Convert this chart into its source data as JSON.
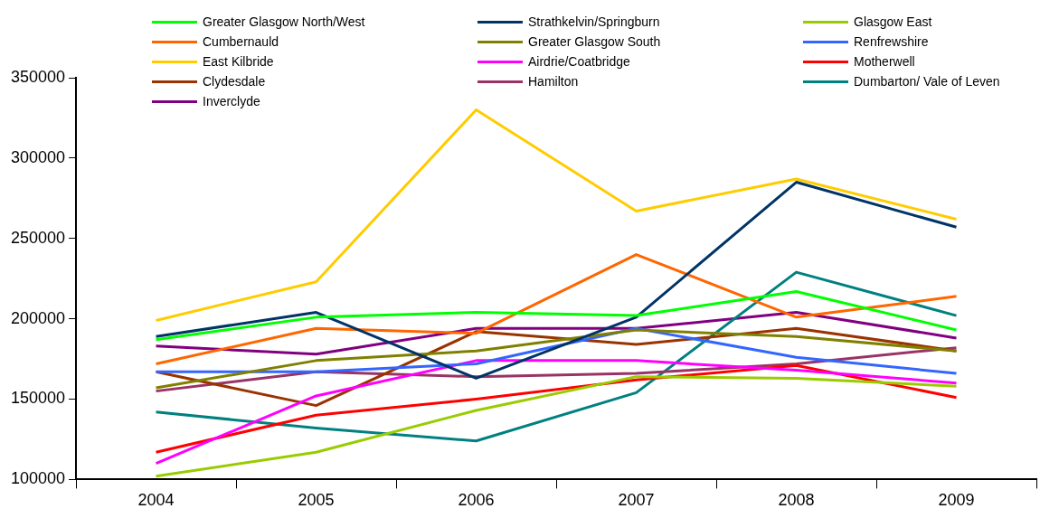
{
  "chart_data": {
    "type": "line",
    "categories": [
      "2004",
      "2005",
      "2006",
      "2007",
      "2008",
      "2009"
    ],
    "ylim": [
      100000,
      350000
    ],
    "yticks": [
      100000,
      150000,
      200000,
      250000,
      300000,
      350000
    ],
    "grid": false,
    "legend": "top",
    "marker": "none",
    "series": [
      {
        "name": "Greater Glasgow North/West",
        "color": "#00ff00",
        "values": [
          187000,
          201000,
          204000,
          202000,
          217000,
          193000
        ]
      },
      {
        "name": "Strathkelvin/Springburn",
        "color": "#003366",
        "values": [
          189000,
          204000,
          163000,
          201000,
          285000,
          257000
        ]
      },
      {
        "name": "Glasgow East",
        "color": "#99cc00",
        "values": [
          102000,
          117000,
          143000,
          164000,
          163000,
          158000
        ]
      },
      {
        "name": "Cumbernauld",
        "color": "#ff6600",
        "values": [
          172000,
          194000,
          191000,
          240000,
          201000,
          214000
        ]
      },
      {
        "name": "Greater Glasgow South",
        "color": "#808000",
        "values": [
          157000,
          174000,
          180000,
          193000,
          189000,
          180000
        ]
      },
      {
        "name": "Renfrewshire",
        "color": "#3366ff",
        "values": [
          167000,
          167000,
          172000,
          194000,
          176000,
          166000
        ]
      },
      {
        "name": "East Kilbride",
        "color": "#ffcc00",
        "values": [
          199000,
          223000,
          330000,
          267000,
          287000,
          262000
        ]
      },
      {
        "name": "Airdrie/Coatbridge",
        "color": "#ff00ff",
        "values": [
          110000,
          152000,
          174000,
          174000,
          168000,
          160000
        ]
      },
      {
        "name": "Motherwell",
        "color": "#ff0000",
        "values": [
          117000,
          140000,
          150000,
          162000,
          171000,
          151000
        ]
      },
      {
        "name": "Clydesdale",
        "color": "#993300",
        "values": [
          167000,
          146000,
          192000,
          184000,
          194000,
          180000
        ]
      },
      {
        "name": "Hamilton",
        "color": "#993366",
        "values": [
          155000,
          167000,
          164000,
          166000,
          172000,
          182000
        ]
      },
      {
        "name": "Dumbarton/ Vale of Leven",
        "color": "#008080",
        "values": [
          142000,
          132000,
          124000,
          154000,
          229000,
          202000
        ]
      },
      {
        "name": "Inverclyde",
        "color": "#800080",
        "values": [
          183000,
          178000,
          194000,
          194000,
          204000,
          188000
        ]
      }
    ]
  }
}
